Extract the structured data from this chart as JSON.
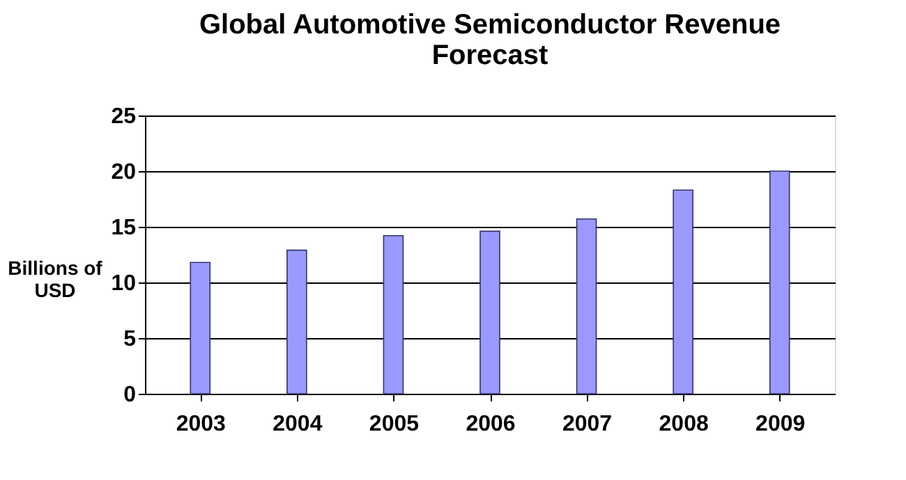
{
  "chart_data": {
    "type": "bar",
    "title": "Global Automotive Semiconductor Revenue Forecast",
    "ylabel": "Billions of USD",
    "categories": [
      "2003",
      "2004",
      "2005",
      "2006",
      "2007",
      "2008",
      "2009"
    ],
    "values": [
      11.8,
      12.9,
      14.2,
      14.6,
      15.7,
      18.3,
      20.0
    ],
    "color": "#9999ff",
    "ylim": [
      0,
      25
    ],
    "yticks": [
      0,
      5,
      10,
      15,
      20,
      25
    ],
    "grid": "y"
  }
}
